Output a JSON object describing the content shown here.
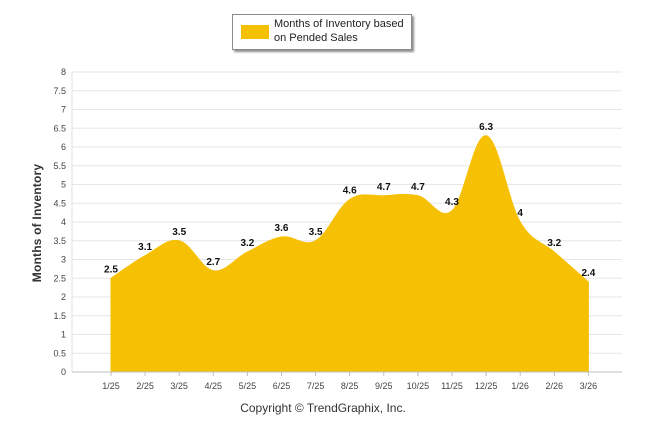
{
  "chart_data": {
    "type": "area",
    "categories": [
      "1/25",
      "2/25",
      "3/25",
      "4/25",
      "5/25",
      "6/25",
      "7/25",
      "8/25",
      "9/25",
      "10/25",
      "11/25",
      "12/25",
      "1/26",
      "2/26",
      "3/26"
    ],
    "series": [
      {
        "name": "Months of Inventory based on Pended Sales",
        "values": [
          2.5,
          3.1,
          3.5,
          2.7,
          3.2,
          3.6,
          3.5,
          4.6,
          4.7,
          4.7,
          4.3,
          6.3,
          4,
          3.2,
          2.4
        ],
        "labels": [
          "2.5",
          "3.1",
          "3.5",
          "2.7",
          "3.2",
          "3.6",
          "3.5",
          "4.6",
          "4.7",
          "4.7",
          "4.3",
          "6.3",
          "4",
          "3.2",
          "2.4"
        ],
        "color": "#f6c105"
      }
    ],
    "ylabel": "Months of Inventory",
    "ylim": [
      0,
      8
    ],
    "yticks": [
      "0",
      "0.5",
      "1",
      "1.5",
      "2",
      "2.5",
      "3",
      "3.5",
      "4",
      "4.5",
      "5",
      "5.5",
      "6",
      "6.5",
      "7",
      "7.5",
      "8"
    ],
    "grid": true,
    "legend_position": "top-center"
  },
  "legend": {
    "label": "Months of Inventory based on Pended Sales"
  },
  "footer": {
    "copyright": "Copyright © TrendGraphix, Inc."
  }
}
